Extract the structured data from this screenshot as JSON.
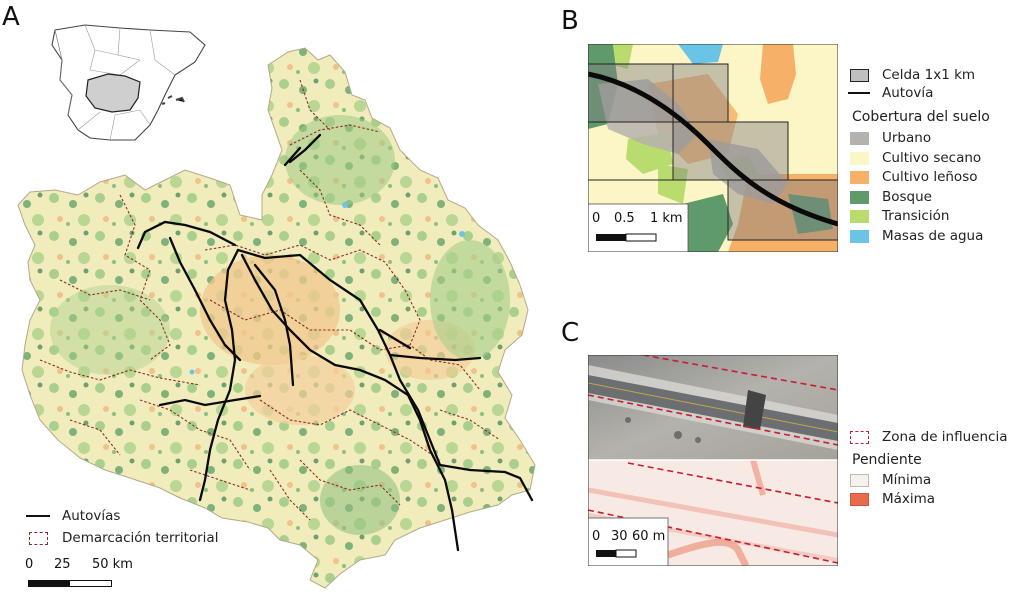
{
  "panel_a": {
    "letter": "A",
    "legend": {
      "motorways": "Autovías",
      "boundary": "Demarcación territorial"
    },
    "scale": {
      "t0": "0",
      "t1": "25",
      "t2": "50 km"
    }
  },
  "panel_b": {
    "letter": "B",
    "legend": {
      "cell": "Celda 1x1 km",
      "motorway": "Autovía",
      "cover_title": "Cobertura del suelo",
      "classes": [
        {
          "label": "Urbano",
          "color": "#b5b1ad"
        },
        {
          "label": "Cultivo secano",
          "color": "#fcf5c6"
        },
        {
          "label": "Cultivo leñoso",
          "color": "#f6b068"
        },
        {
          "label": "Bosque",
          "color": "#5e9a6a"
        },
        {
          "label": "Transición",
          "color": "#b9dc6e"
        },
        {
          "label": "Masas de agua",
          "color": "#69c4e6"
        }
      ]
    },
    "scale": {
      "t0": "0",
      "t1": "0.5",
      "t2": "1 km"
    }
  },
  "panel_c": {
    "letter": "C",
    "legend": {
      "zone": "Zona de influencia",
      "slope_title": "Pendiente",
      "min": "Mínima",
      "max": "Máxima",
      "min_color": "#f7f1ec",
      "max_color": "#e96a4c"
    },
    "scale": {
      "t0": "0",
      "t1": "30",
      "t2": "60 m"
    }
  }
}
